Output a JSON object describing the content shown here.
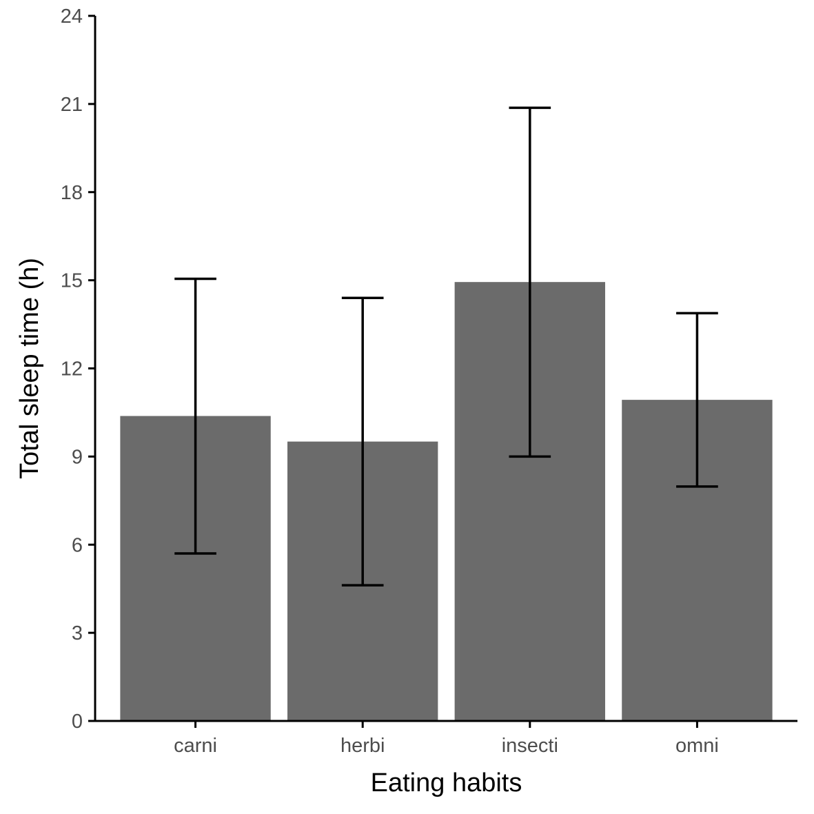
{
  "chart_data": {
    "type": "bar",
    "categories": [
      "carni",
      "herbi",
      "insecti",
      "omni"
    ],
    "series": [
      {
        "values": [
          10.38,
          9.51,
          14.94,
          10.93
        ],
        "error_low": [
          5.7,
          4.62,
          9.0,
          7.98
        ],
        "error_high": [
          15.05,
          14.4,
          20.87,
          13.88
        ]
      }
    ],
    "xlabel": "Eating habits",
    "ylabel": "Total sleep time (h)",
    "ylim": [
      0,
      24
    ],
    "yticks": [
      "0",
      "3",
      "6",
      "9",
      "12",
      "15",
      "18",
      "21",
      "24"
    ],
    "grid": false,
    "legend": "none",
    "colors": {
      "bar": "#6b6b6b",
      "errorbar": "#000000",
      "axis": "#000000",
      "tick_label": "#4d4d4d"
    }
  }
}
